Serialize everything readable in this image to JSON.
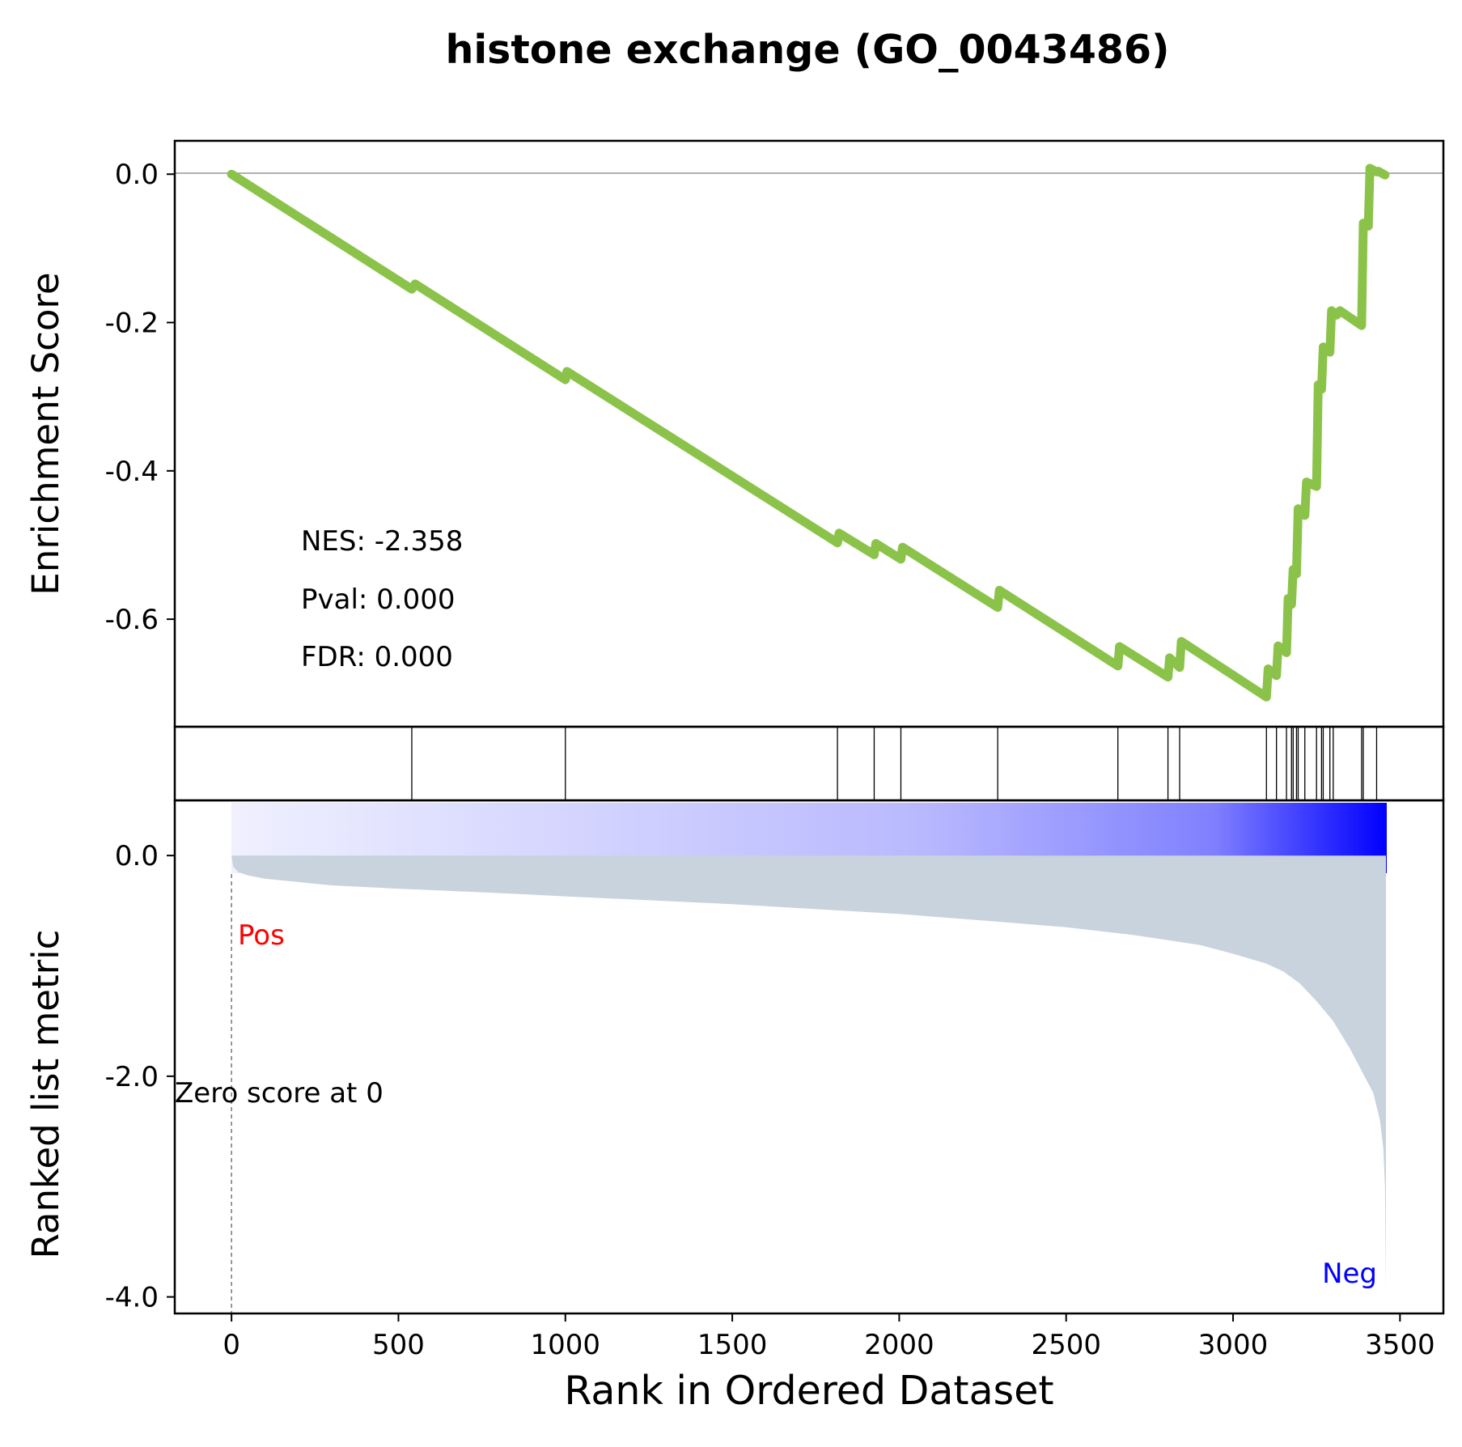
{
  "chart_data": {
    "type": "line",
    "title": "histone exchange (GO_0043486)",
    "xlabel": "Rank in Ordered Dataset",
    "x_ticks": [
      0,
      500,
      1000,
      1500,
      2000,
      2500,
      3000,
      3500
    ],
    "x_tick_labels": [
      "0",
      "500",
      "1000",
      "1500",
      "2000",
      "2500",
      "3000",
      "3500"
    ],
    "xlim": [
      -170,
      3630
    ],
    "panels": {
      "enrichment": {
        "ylabel": "Enrichment Score",
        "ylim": [
          -0.745,
          0.045
        ],
        "y_ticks": [
          0.0,
          -0.2,
          -0.4,
          -0.6
        ],
        "y_tick_labels": [
          "0.0",
          "-0.2",
          "-0.4",
          "-0.6"
        ],
        "zero_line": true,
        "line_color": "#8bc34a",
        "series": [
          {
            "x": [
              0,
              540,
              550,
              1000,
              1005,
              1815,
              1820,
              1925,
              1930,
              2005,
              2010,
              2295,
              2300,
              2655,
              2660,
              2805,
              2810,
              2840,
              2845,
              3100,
              3105,
              3130,
              3135,
              3160,
              3165,
              3175,
              3180,
              3190,
              3195,
              3215,
              3220,
              3250,
              3255,
              3265,
              3270,
              3290,
              3295,
              3310,
              3320,
              3385,
              3390,
              3405,
              3410,
              3430,
              3435,
              3455
            ],
            "y": [
              0.0,
              -0.155,
              -0.148,
              -0.277,
              -0.266,
              -0.497,
              -0.484,
              -0.513,
              -0.498,
              -0.519,
              -0.503,
              -0.584,
              -0.561,
              -0.663,
              -0.637,
              -0.678,
              -0.652,
              -0.665,
              -0.63,
              -0.705,
              -0.667,
              -0.676,
              -0.636,
              -0.645,
              -0.572,
              -0.58,
              -0.533,
              -0.539,
              -0.451,
              -0.46,
              -0.415,
              -0.421,
              -0.284,
              -0.29,
              -0.233,
              -0.24,
              -0.184,
              -0.19,
              -0.184,
              -0.204,
              -0.066,
              -0.07,
              0.008,
              0.003,
              0.004,
              -0.001
            ]
          }
        ],
        "annotations": [
          "NES: -2.358",
          "Pval: 0.000",
          "FDR: 0.000"
        ]
      },
      "hits": {
        "positions": [
          540,
          1000,
          1815,
          1925,
          2005,
          2295,
          2655,
          2805,
          2840,
          3100,
          3130,
          3160,
          3175,
          3180,
          3190,
          3195,
          3215,
          3250,
          3265,
          3270,
          3290,
          3300,
          3385,
          3390,
          3430
        ]
      },
      "ranked_metric": {
        "ylabel": "Ranked list metric",
        "ylim": [
          -4.15,
          0.5
        ],
        "y_ticks": [
          0.0,
          -2.0,
          -4.0
        ],
        "y_tick_labels": [
          "0.0",
          "-2.0",
          "-4.0"
        ],
        "fill_color": "#c8d3dd",
        "x": [
          0,
          5,
          20,
          50,
          100,
          200,
          300,
          500,
          800,
          1000,
          1500,
          2000,
          2300,
          2500,
          2700,
          2900,
          3000,
          3100,
          3150,
          3200,
          3250,
          3300,
          3350,
          3390,
          3420,
          3440,
          3450,
          3455,
          3458
        ],
        "y": [
          0.0,
          -0.1,
          -0.15,
          -0.18,
          -0.21,
          -0.24,
          -0.27,
          -0.3,
          -0.34,
          -0.37,
          -0.44,
          -0.53,
          -0.6,
          -0.65,
          -0.72,
          -0.81,
          -0.89,
          -0.98,
          -1.05,
          -1.16,
          -1.32,
          -1.5,
          -1.75,
          -1.98,
          -2.15,
          -2.4,
          -2.65,
          -3.0,
          -3.95
        ],
        "zero_cross_x": 0,
        "zero_cross_label": "Zero score at 0",
        "pos_label": "Pos",
        "neg_label": "Neg",
        "pos_color": "#ff0000",
        "neg_color": "#0000ff",
        "gradient_colors": [
          "#f0f0ff",
          "#0000ff"
        ]
      }
    }
  }
}
